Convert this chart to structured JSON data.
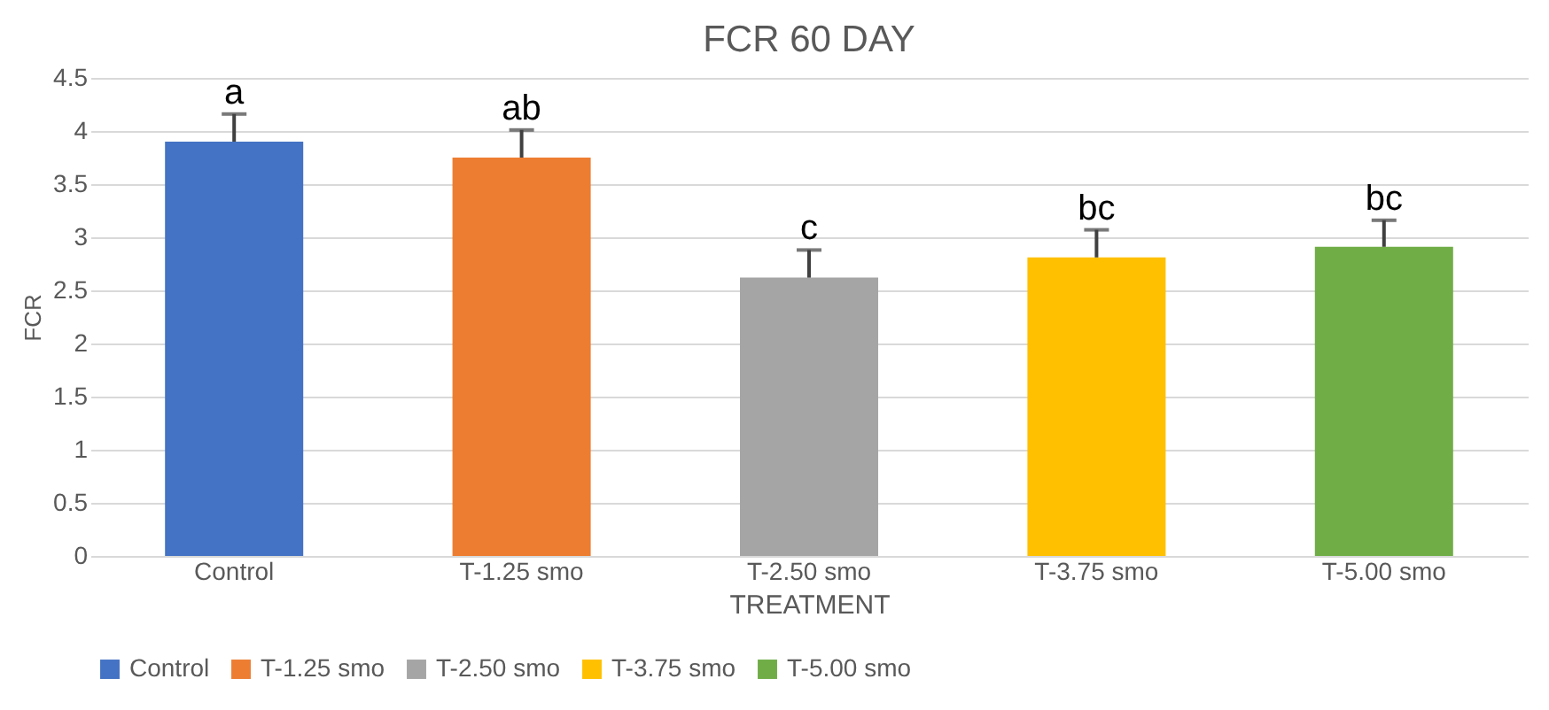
{
  "chart_data": {
    "type": "bar",
    "title": "FCR 60 DAY",
    "xlabel": "TREATMENT",
    "ylabel": "FCR",
    "categories": [
      "Control",
      "T-1.25 smo",
      "T-2.50 smo",
      "T-3.75 smo",
      "T-5.00 smo"
    ],
    "series": [
      {
        "name": "Control",
        "color": "#4472c4",
        "values": [
          3.9,
          null,
          null,
          null,
          null
        ],
        "errors": [
          [
            3.9,
            4.16
          ],
          null,
          null,
          null,
          null
        ]
      },
      {
        "name": "T-1.25 smo",
        "color": "#ed7d31",
        "values": [
          null,
          3.75,
          null,
          null,
          null
        ],
        "errors": [
          null,
          [
            3.75,
            4.01
          ],
          null,
          null,
          null
        ]
      },
      {
        "name": "T-2.50 smo",
        "color": "#a5a5a5",
        "values": [
          null,
          null,
          2.62,
          null,
          null
        ],
        "errors": [
          null,
          null,
          [
            2.62,
            2.88
          ],
          null,
          null
        ]
      },
      {
        "name": "T-3.75 smo",
        "color": "#ffc000",
        "values": [
          null,
          null,
          null,
          2.81,
          null
        ],
        "errors": [
          null,
          null,
          null,
          [
            2.81,
            3.07
          ],
          null
        ]
      },
      {
        "name": "T-5.00 smo",
        "color": "#70ad47",
        "values": [
          null,
          null,
          null,
          null,
          2.91
        ],
        "errors": [
          null,
          null,
          null,
          null,
          [
            2.91,
            3.16
          ]
        ]
      }
    ],
    "annotations": [
      {
        "text": "a",
        "x": "Control",
        "y": 4.16
      },
      {
        "text": "ab",
        "x": "T-1.25 smo",
        "y": 4.01
      },
      {
        "text": "c",
        "x": "T-2.50 smo",
        "y": 2.88
      },
      {
        "text": "bc",
        "x": "T-3.75 smo",
        "y": 3.07
      },
      {
        "text": "bc",
        "x": "T-5.00 smo",
        "y": 3.16
      }
    ],
    "ylim": [
      0,
      4.5
    ],
    "yticks": [
      0,
      0.5,
      1,
      1.5,
      2,
      2.5,
      3,
      3.5,
      4,
      4.5
    ],
    "grid": "y",
    "legend": "bottom"
  }
}
